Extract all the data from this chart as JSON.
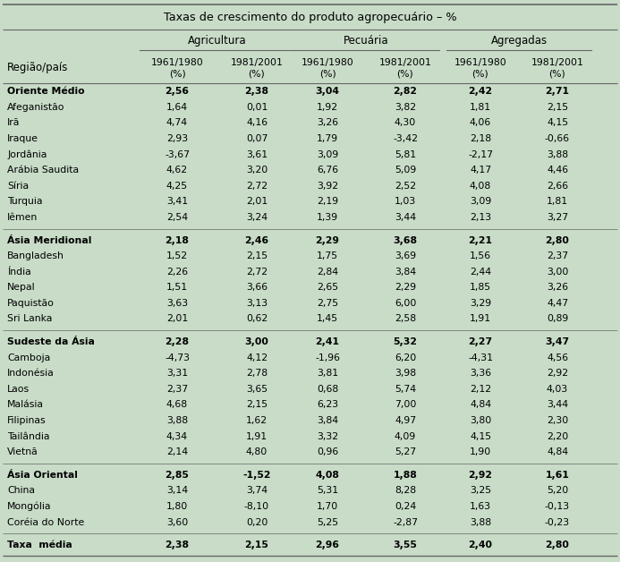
{
  "title": "Taxas de crescimento do produto agropecuário – %",
  "rows": [
    {
      "label": "Oriente Médio",
      "bold": true,
      "indent": false,
      "spacer_before": false,
      "values": [
        "2,56",
        "2,38",
        "3,04",
        "2,82",
        "2,42",
        "2,71"
      ]
    },
    {
      "label": "Afeganistão",
      "bold": false,
      "indent": true,
      "spacer_before": false,
      "values": [
        "1,64",
        "0,01",
        "1,92",
        "3,82",
        "1,81",
        "2,15"
      ]
    },
    {
      "label": "Irã",
      "bold": false,
      "indent": true,
      "spacer_before": false,
      "values": [
        "4,74",
        "4,16",
        "3,26",
        "4,30",
        "4,06",
        "4,15"
      ]
    },
    {
      "label": "Iraque",
      "bold": false,
      "indent": true,
      "spacer_before": false,
      "values": [
        "2,93",
        "0,07",
        "1,79",
        "-3,42",
        "2,18",
        "-0,66"
      ]
    },
    {
      "label": "Jordânia",
      "bold": false,
      "indent": true,
      "spacer_before": false,
      "values": [
        "-3,67",
        "3,61",
        "3,09",
        "5,81",
        "-2,17",
        "3,88"
      ]
    },
    {
      "label": "Arábia Saudita",
      "bold": false,
      "indent": true,
      "spacer_before": false,
      "values": [
        "4,62",
        "3,20",
        "6,76",
        "5,09",
        "4,17",
        "4,46"
      ]
    },
    {
      "label": "Síria",
      "bold": false,
      "indent": true,
      "spacer_before": false,
      "values": [
        "4,25",
        "2,72",
        "3,92",
        "2,52",
        "4,08",
        "2,66"
      ]
    },
    {
      "label": "Turquia",
      "bold": false,
      "indent": true,
      "spacer_before": false,
      "values": [
        "3,41",
        "2,01",
        "2,19",
        "1,03",
        "3,09",
        "1,81"
      ]
    },
    {
      "label": "Iêmen",
      "bold": false,
      "indent": true,
      "spacer_before": false,
      "values": [
        "2,54",
        "3,24",
        "1,39",
        "3,44",
        "2,13",
        "3,27"
      ]
    },
    {
      "label": "Ásia Meridional",
      "bold": true,
      "indent": false,
      "spacer_before": true,
      "values": [
        "2,18",
        "2,46",
        "2,29",
        "3,68",
        "2,21",
        "2,80"
      ]
    },
    {
      "label": "Bangladesh",
      "bold": false,
      "indent": true,
      "spacer_before": false,
      "values": [
        "1,52",
        "2,15",
        "1,75",
        "3,69",
        "1,56",
        "2,37"
      ]
    },
    {
      "label": "Índia",
      "bold": false,
      "indent": true,
      "spacer_before": false,
      "values": [
        "2,26",
        "2,72",
        "2,84",
        "3,84",
        "2,44",
        "3,00"
      ]
    },
    {
      "label": "Nepal",
      "bold": false,
      "indent": true,
      "spacer_before": false,
      "values": [
        "1,51",
        "3,66",
        "2,65",
        "2,29",
        "1,85",
        "3,26"
      ]
    },
    {
      "label": "Paquistão",
      "bold": false,
      "indent": true,
      "spacer_before": false,
      "values": [
        "3,63",
        "3,13",
        "2,75",
        "6,00",
        "3,29",
        "4,47"
      ]
    },
    {
      "label": "Sri Lanka",
      "bold": false,
      "indent": true,
      "spacer_before": false,
      "values": [
        "2,01",
        "0,62",
        "1,45",
        "2,58",
        "1,91",
        "0,89"
      ]
    },
    {
      "label": "Sudeste da Ásia",
      "bold": true,
      "indent": false,
      "spacer_before": true,
      "values": [
        "2,28",
        "3,00",
        "2,41",
        "5,32",
        "2,27",
        "3,47"
      ]
    },
    {
      "label": "Camboja",
      "bold": false,
      "indent": true,
      "spacer_before": false,
      "values": [
        "-4,73",
        "4,12",
        "-1,96",
        "6,20",
        "-4,31",
        "4,56"
      ]
    },
    {
      "label": "Indonésia",
      "bold": false,
      "indent": true,
      "spacer_before": false,
      "values": [
        "3,31",
        "2,78",
        "3,81",
        "3,98",
        "3,36",
        "2,92"
      ]
    },
    {
      "label": "Laos",
      "bold": false,
      "indent": true,
      "spacer_before": false,
      "values": [
        "2,37",
        "3,65",
        "0,68",
        "5,74",
        "2,12",
        "4,03"
      ]
    },
    {
      "label": "Malásia",
      "bold": false,
      "indent": true,
      "spacer_before": false,
      "values": [
        "4,68",
        "2,15",
        "6,23",
        "7,00",
        "4,84",
        "3,44"
      ]
    },
    {
      "label": "Filipinas",
      "bold": false,
      "indent": true,
      "spacer_before": false,
      "values": [
        "3,88",
        "1,62",
        "3,84",
        "4,97",
        "3,80",
        "2,30"
      ]
    },
    {
      "label": "Tailândia",
      "bold": false,
      "indent": true,
      "spacer_before": false,
      "values": [
        "4,34",
        "1,91",
        "3,32",
        "4,09",
        "4,15",
        "2,20"
      ]
    },
    {
      "label": "Vietnã",
      "bold": false,
      "indent": true,
      "spacer_before": false,
      "values": [
        "2,14",
        "4,80",
        "0,96",
        "5,27",
        "1,90",
        "4,84"
      ]
    },
    {
      "label": "Ásia Oriental",
      "bold": true,
      "indent": false,
      "spacer_before": true,
      "values": [
        "2,85",
        "-1,52",
        "4,08",
        "1,88",
        "2,92",
        "1,61"
      ]
    },
    {
      "label": "China",
      "bold": false,
      "indent": true,
      "spacer_before": false,
      "values": [
        "3,14",
        "3,74",
        "5,31",
        "8,28",
        "3,25",
        "5,20"
      ]
    },
    {
      "label": "Mongólia",
      "bold": false,
      "indent": true,
      "spacer_before": false,
      "values": [
        "1,80",
        "-8,10",
        "1,70",
        "0,24",
        "1,63",
        "-0,13"
      ]
    },
    {
      "label": "Coréia do Norte",
      "bold": false,
      "indent": true,
      "spacer_before": false,
      "values": [
        "3,60",
        "0,20",
        "5,25",
        "-2,87",
        "3,88",
        "-0,23"
      ]
    },
    {
      "label": "Taxa  média",
      "bold": true,
      "indent": false,
      "spacer_before": true,
      "values": [
        "2,38",
        "2,15",
        "2,96",
        "3,55",
        "2,40",
        "2,80"
      ]
    }
  ],
  "bg_color": "#c8dcc8",
  "text_color": "#000000",
  "line_color": "#666666",
  "font_size": 7.8,
  "title_font_size": 9.2,
  "header_font_size": 8.5
}
